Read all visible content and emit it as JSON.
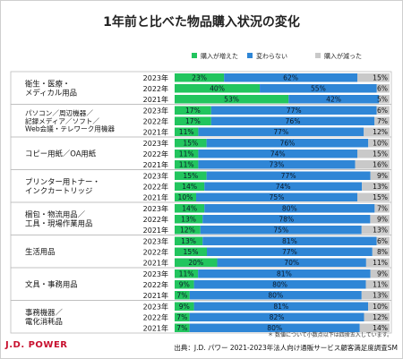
{
  "page": {
    "title": "1年前と比べた物品購入状況の変化",
    "note": "＊ 数値について小数点以下は四捨五入しています。",
    "source": "出典：J.D. パワー 2021-2023年法人向け通販サービス顧客満足度調査SM",
    "brand": "J.D. POWER"
  },
  "colors": {
    "increased": "#22c55e",
    "unchanged": "#2f86d6",
    "decreased": "#c9c9c9"
  },
  "chart_data": {
    "type": "bar",
    "orientation": "horizontal",
    "stacked": true,
    "legend": [
      "購入が増えた",
      "変わらない",
      "購入が減った"
    ],
    "legend_position": "top-right",
    "groups": [
      {
        "label": "衛生・医療・\nメディカル用品",
        "rows": [
          {
            "year": "2023年",
            "values": [
              23,
              62,
              15
            ],
            "labels": [
              "23%",
              "62%",
              "15%"
            ]
          },
          {
            "year": "2022年",
            "values": [
              40,
              55,
              6
            ],
            "labels": [
              "40%",
              "55%",
              "6%"
            ]
          },
          {
            "year": "2021年",
            "values": [
              53,
              42,
              5
            ],
            "labels": [
              "53%",
              "42%",
              "5%"
            ]
          }
        ]
      },
      {
        "label": "パソコン／周辺機器／\n記録メディア／ソフト／\nWeb会議・テレワーク用機器",
        "rows": [
          {
            "year": "2023年",
            "values": [
              17,
              77,
              6
            ],
            "labels": [
              "17%",
              "77%",
              "6%"
            ]
          },
          {
            "year": "2022年",
            "values": [
              17,
              76,
              7
            ],
            "labels": [
              "17%",
              "76%",
              "7%"
            ]
          },
          {
            "year": "2021年",
            "values": [
              11,
              77,
              12
            ],
            "labels": [
              "11%",
              "77%",
              "12%"
            ]
          }
        ]
      },
      {
        "label": "コピー用紙／OA用紙",
        "rows": [
          {
            "year": "2023年",
            "values": [
              15,
              76,
              10
            ],
            "labels": [
              "15%",
              "76%",
              "10%"
            ]
          },
          {
            "year": "2022年",
            "values": [
              11,
              74,
              15
            ],
            "labels": [
              "11%",
              "74%",
              "15%"
            ]
          },
          {
            "year": "2021年",
            "values": [
              11,
              73,
              16
            ],
            "labels": [
              "11%",
              "73%",
              "16%"
            ]
          }
        ]
      },
      {
        "label": "プリンター用トナー・\nインクカートリッジ",
        "rows": [
          {
            "year": "2023年",
            "values": [
              15,
              77,
              9
            ],
            "labels": [
              "15%",
              "77%",
              "9%"
            ]
          },
          {
            "year": "2022年",
            "values": [
              14,
              74,
              13
            ],
            "labels": [
              "14%",
              "74%",
              "13%"
            ]
          },
          {
            "year": "2021年",
            "values": [
              10,
              75,
              15
            ],
            "labels": [
              "10%",
              "75%",
              "15%"
            ]
          }
        ]
      },
      {
        "label": "梱包・物流用品／\n工具・現場作業用品",
        "rows": [
          {
            "year": "2023年",
            "values": [
              14,
              80,
              7
            ],
            "labels": [
              "14%",
              "80%",
              "7%"
            ]
          },
          {
            "year": "2022年",
            "values": [
              13,
              78,
              9
            ],
            "labels": [
              "13%",
              "78%",
              "9%"
            ]
          },
          {
            "year": "2021年",
            "values": [
              12,
              75,
              13
            ],
            "labels": [
              "12%",
              "75%",
              "13%"
            ]
          }
        ]
      },
      {
        "label": "生活用品",
        "rows": [
          {
            "year": "2023年",
            "values": [
              13,
              81,
              6
            ],
            "labels": [
              "13%",
              "81%",
              "6%"
            ]
          },
          {
            "year": "2022年",
            "values": [
              15,
              77,
              8
            ],
            "labels": [
              "15%",
              "77%",
              "8%"
            ]
          },
          {
            "year": "2021年",
            "values": [
              20,
              70,
              11
            ],
            "labels": [
              "20%",
              "70%",
              "11%"
            ]
          }
        ]
      },
      {
        "label": "文具・事務用品",
        "rows": [
          {
            "year": "2023年",
            "values": [
              11,
              81,
              9
            ],
            "labels": [
              "11%",
              "81%",
              "9%"
            ]
          },
          {
            "year": "2022年",
            "values": [
              9,
              80,
              11
            ],
            "labels": [
              "9%",
              "80%",
              "11%"
            ]
          },
          {
            "year": "2021年",
            "values": [
              7,
              80,
              13
            ],
            "labels": [
              "7%",
              "80%",
              "13%"
            ]
          }
        ]
      },
      {
        "label": "事務機器／\n電化消耗品",
        "rows": [
          {
            "year": "2023年",
            "values": [
              9,
              81,
              10
            ],
            "labels": [
              "9%",
              "81%",
              "10%"
            ]
          },
          {
            "year": "2022年",
            "values": [
              7,
              82,
              12
            ],
            "labels": [
              "7%",
              "82%",
              "12%"
            ]
          },
          {
            "year": "2021年",
            "values": [
              7,
              80,
              14
            ],
            "labels": [
              "7%",
              "80%",
              "14%"
            ]
          }
        ]
      }
    ]
  }
}
